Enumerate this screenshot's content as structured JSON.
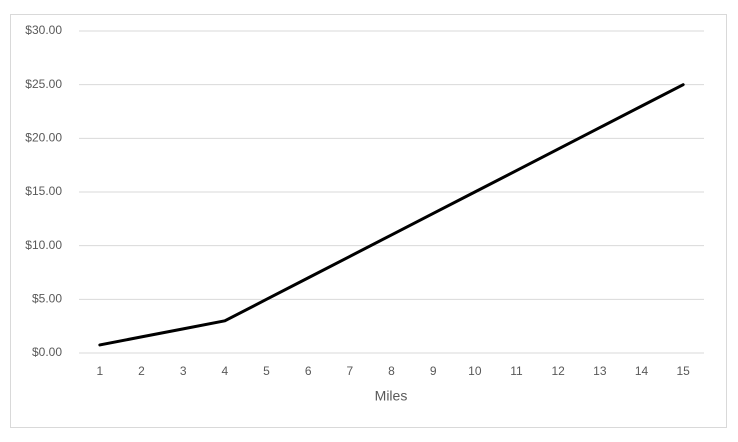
{
  "chart_data": {
    "type": "line",
    "x_label": "Miles",
    "categories": [
      "1",
      "2",
      "3",
      "4",
      "5",
      "6",
      "7",
      "8",
      "9",
      "10",
      "11",
      "12",
      "13",
      "14",
      "15"
    ],
    "series": [
      {
        "name": null,
        "color": "#000000",
        "values": [
          0.75,
          1.5,
          2.25,
          3,
          5,
          7,
          9,
          11,
          13,
          15,
          17,
          19,
          21,
          23,
          25
        ]
      }
    ],
    "ylim": [
      0,
      30
    ],
    "yticks": [
      {
        "value": 0,
        "label": "$0.00"
      },
      {
        "value": 5,
        "label": "$5.00"
      },
      {
        "value": 10,
        "label": "$10.00"
      },
      {
        "value": 15,
        "label": "$15.00"
      },
      {
        "value": 20,
        "label": "$20.00"
      },
      {
        "value": 25,
        "label": "$25.00"
      },
      {
        "value": 30,
        "label": "$30.00"
      }
    ],
    "grid": true
  }
}
